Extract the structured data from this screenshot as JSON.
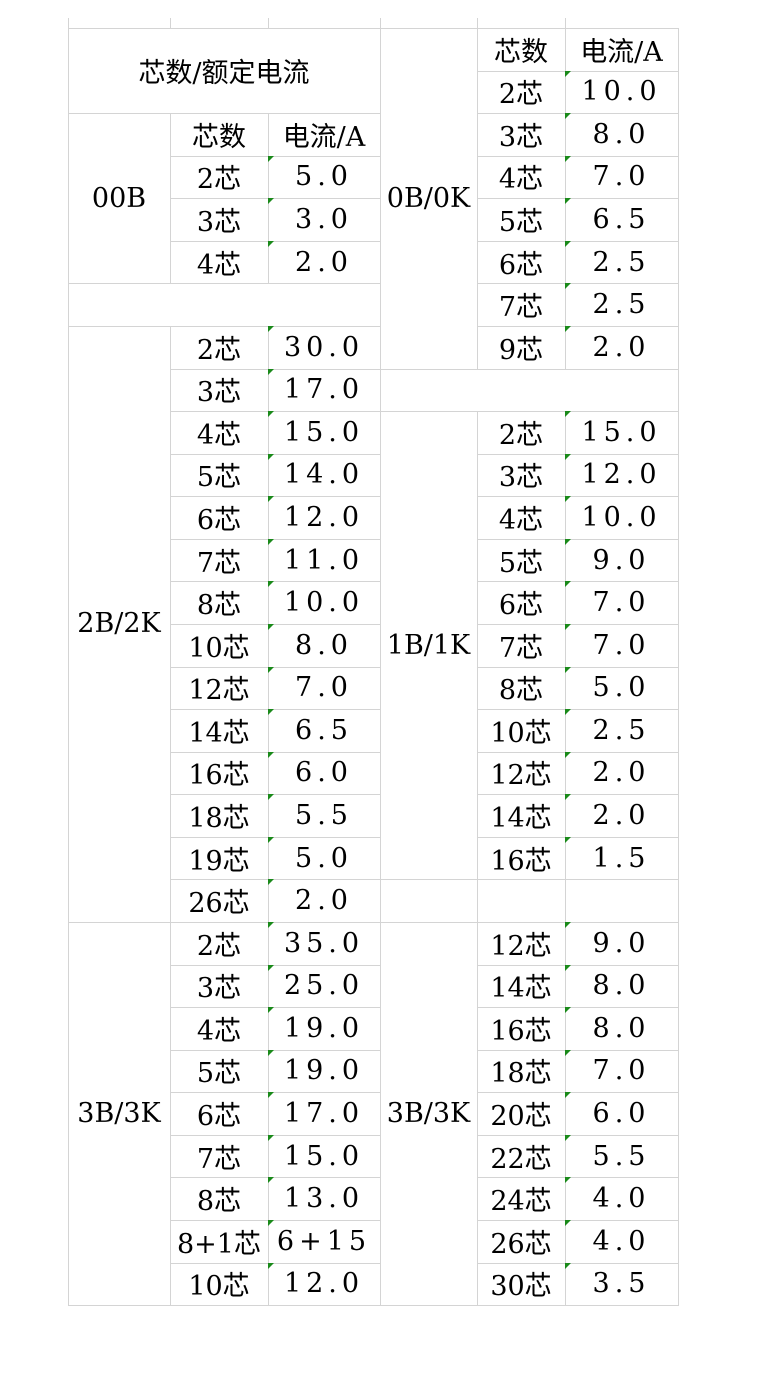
{
  "title": "芯数/额定电流",
  "header": {
    "cores": "芯数",
    "current": "电流/A"
  },
  "left_groups": [
    {
      "label": "00B",
      "has_header": true,
      "rows": [
        [
          "2芯",
          "5.0"
        ],
        [
          "3芯",
          "3.0"
        ],
        [
          "4芯",
          "2.0"
        ]
      ]
    },
    {
      "label": "2B/2K",
      "has_header": false,
      "rows": [
        [
          "2芯",
          "30.0"
        ],
        [
          "3芯",
          "17.0"
        ],
        [
          "4芯",
          "15.0"
        ],
        [
          "5芯",
          "14.0"
        ],
        [
          "6芯",
          "12.0"
        ],
        [
          "7芯",
          "11.0"
        ],
        [
          "8芯",
          "10.0"
        ],
        [
          "10芯",
          "8.0"
        ],
        [
          "12芯",
          "7.0"
        ],
        [
          "14芯",
          "6.5"
        ],
        [
          "16芯",
          "6.0"
        ],
        [
          "18芯",
          "5.5"
        ],
        [
          "19芯",
          "5.0"
        ],
        [
          "26芯",
          "2.0"
        ]
      ]
    },
    {
      "label": "3B/3K",
      "has_header": false,
      "rows": [
        [
          "2芯",
          "35.0"
        ],
        [
          "3芯",
          "25.0"
        ],
        [
          "4芯",
          "19.0"
        ],
        [
          "5芯",
          "19.0"
        ],
        [
          "6芯",
          "17.0"
        ],
        [
          "7芯",
          "15.0"
        ],
        [
          "8芯",
          "13.0"
        ],
        [
          "8+1芯",
          "6+15"
        ],
        [
          "10芯",
          "12.0"
        ]
      ]
    }
  ],
  "right_groups": [
    {
      "label": "0B/0K",
      "has_header": true,
      "rows": [
        [
          "2芯",
          "10.0"
        ],
        [
          "3芯",
          "8.0"
        ],
        [
          "4芯",
          "7.0"
        ],
        [
          "5芯",
          "6.5"
        ],
        [
          "6芯",
          "2.5"
        ],
        [
          "7芯",
          "2.5"
        ],
        [
          "9芯",
          "2.0"
        ]
      ]
    },
    {
      "label": "1B/1K",
      "has_header": false,
      "rows": [
        [
          "2芯",
          "15.0"
        ],
        [
          "3芯",
          "12.0"
        ],
        [
          "4芯",
          "10.0"
        ],
        [
          "5芯",
          "9.0"
        ],
        [
          "6芯",
          "7.0"
        ],
        [
          "7芯",
          "7.0"
        ],
        [
          "8芯",
          "5.0"
        ],
        [
          "10芯",
          "2.5"
        ],
        [
          "12芯",
          "2.0"
        ],
        [
          "14芯",
          "2.0"
        ],
        [
          "16芯",
          "1.5"
        ]
      ]
    },
    {
      "label": "3B/3K",
      "has_header": false,
      "rows": [
        [
          "12芯",
          "9.0"
        ],
        [
          "14芯",
          "8.0"
        ],
        [
          "16芯",
          "8.0"
        ],
        [
          "18芯",
          "7.0"
        ],
        [
          "20芯",
          "6.0"
        ],
        [
          "22芯",
          "5.5"
        ],
        [
          "24芯",
          "4.0"
        ],
        [
          "26芯",
          "4.0"
        ],
        [
          "30芯",
          "3.5"
        ]
      ]
    }
  ],
  "colors": {
    "grid": "#d4d4d4",
    "number_marker": "#1a8a1a"
  }
}
